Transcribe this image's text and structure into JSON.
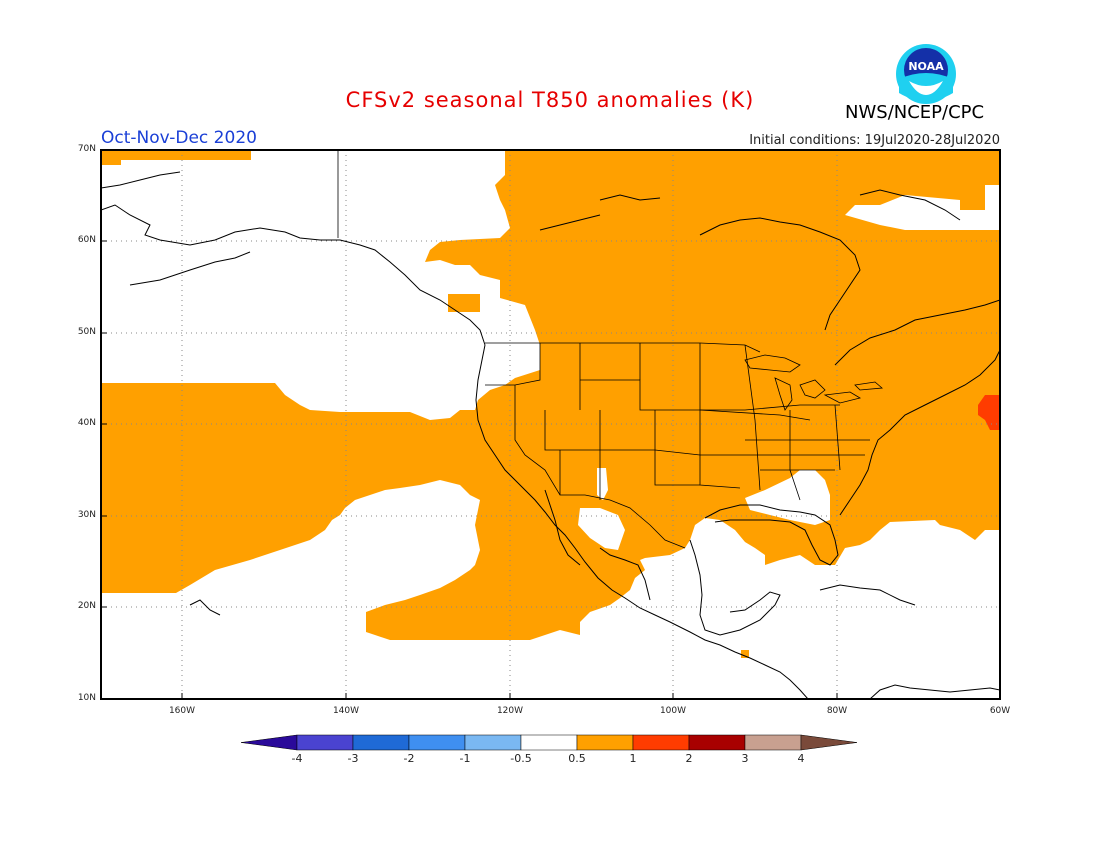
{
  "header": {
    "title": "CFSv2 seasonal T850 anomalies (K)",
    "agency": "NWS/NCEP/CPC",
    "season": "Oct-Nov-Dec 2020",
    "initial_conditions": "Initial conditions: 19Jul2020-28Jul2020",
    "logo_text": "NOAA"
  },
  "axes": {
    "lat_labels": [
      "70N",
      "60N",
      "50N",
      "40N",
      "30N",
      "20N",
      "10N"
    ],
    "lon_labels": [
      "160W",
      "140W",
      "120W",
      "100W",
      "80W",
      "60W"
    ]
  },
  "colorbar": {
    "labels": [
      "-4",
      "-3",
      "-2",
      "-1",
      "-0.5",
      "0.5",
      "1",
      "2",
      "3",
      "4"
    ],
    "colors": [
      "#2a0a9a",
      "#4a43d0",
      "#1f6ad6",
      "#3f8ff0",
      "#7ab8f2",
      "#ffffff",
      "#ffa000",
      "#ff3c00",
      "#a80000",
      "#c8a090",
      "#7a4a3a"
    ]
  },
  "legend_colors": {
    "warm_1": "#ffa000",
    "warm_2": "#ff3c00"
  }
}
